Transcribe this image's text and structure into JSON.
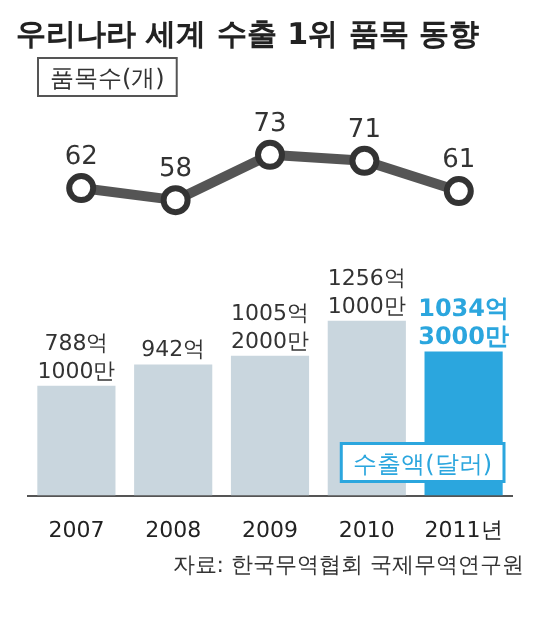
{
  "chart_data": [
    {
      "type": "line",
      "title": "우리나라 세계 수출 1위 품목 동향",
      "categories": [
        null,
        null,
        null,
        null,
        null
      ],
      "tick_labels": false,
      "data_labels": true,
      "marker": "circle",
      "series": [
        {
          "name": "품목수(개)",
          "color": "#555555",
          "values": [
            62,
            58,
            73,
            71,
            61
          ]
        }
      ]
    },
    {
      "type": "bar",
      "categories": [
        "2007",
        "2008",
        "2009",
        "2010",
        "2011년"
      ],
      "tick_labels": "x",
      "series": [
        {
          "name": "수출액(달러)",
          "colors": [
            "#c9d6de",
            "#c9d6de",
            "#c9d6de",
            "#c9d6de",
            "#2ba6de"
          ],
          "values": [
            788.1,
            942,
            1005.2,
            1256.1,
            1034.3
          ],
          "value_labels": [
            "788억 1000만",
            "942억",
            "1005억 2000만",
            "1256억 1000만",
            "1034억 3000만"
          ]
        }
      ],
      "annotations": [
        "자료: 한국무역협회 국제무역연구원"
      ]
    }
  ]
}
